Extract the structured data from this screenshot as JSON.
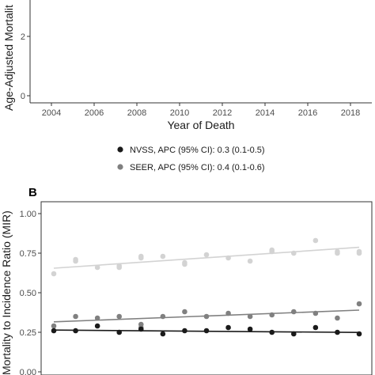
{
  "chart_data": [
    {
      "type": "line",
      "panel_label": "",
      "ylabel": "Age-Adjusted Mortalit",
      "xlabel": "Year of Death",
      "x_ticks": [
        "2004",
        "2006",
        "2008",
        "2010",
        "2012",
        "2014",
        "2016",
        "2018"
      ],
      "y_ticks": [
        "0",
        "2"
      ],
      "xlim": [
        2003,
        2019
      ],
      "ylim": [
        0,
        4
      ],
      "grid": false,
      "series": []
    },
    {
      "type": "scatter",
      "panel_label": "B",
      "ylabel": "Mortality to Incidence Ratio (MIR)",
      "xlabel": "",
      "x": [
        2004,
        2005,
        2006,
        2007,
        2008,
        2009,
        2010,
        2011,
        2012,
        2013,
        2014,
        2015,
        2016,
        2017,
        2018
      ],
      "ylim": [
        0,
        1
      ],
      "y_ticks": [
        "0.00",
        "0.25",
        "0.50",
        "0.75",
        "1.00"
      ],
      "grid": false,
      "series": [
        {
          "color": "#d3d3d3",
          "values": [
            0.62,
            0.71,
            0.66,
            0.67,
            0.73,
            0.73,
            0.69,
            0.74,
            0.72,
            0.7,
            0.77,
            0.75,
            0.83,
            0.76,
            0.76
          ],
          "values_alt": [
            null,
            0.7,
            null,
            0.66,
            0.72,
            null,
            0.68,
            null,
            null,
            null,
            0.76,
            null,
            null,
            0.75,
            0.75
          ],
          "fit": [
            0.655,
            0.787
          ]
        },
        {
          "color": "#808080",
          "values": [
            0.29,
            0.35,
            0.34,
            0.35,
            0.3,
            0.35,
            0.38,
            0.35,
            0.37,
            0.35,
            0.36,
            0.38,
            0.37,
            0.34,
            0.43
          ],
          "values_alt": [
            null,
            null,
            null,
            null,
            0.28,
            null,
            null,
            null,
            null,
            null,
            null,
            null,
            null,
            null,
            null
          ],
          "fit": [
            0.316,
            0.39
          ]
        },
        {
          "color": "#1a1a1a",
          "values": [
            0.26,
            0.26,
            0.29,
            0.25,
            0.27,
            0.24,
            0.26,
            0.26,
            0.28,
            0.27,
            0.25,
            0.24,
            0.28,
            0.25,
            0.24
          ],
          "fit": [
            0.264,
            0.249
          ]
        }
      ]
    }
  ],
  "legend": [
    {
      "label": "NVSS, APC (95% CI): 0.3 (0.1-0.5)",
      "color": "#1a1a1a"
    },
    {
      "label": "SEER, APC (95% CI): 0.4 (0.1-0.6)",
      "color": "#808080"
    }
  ]
}
